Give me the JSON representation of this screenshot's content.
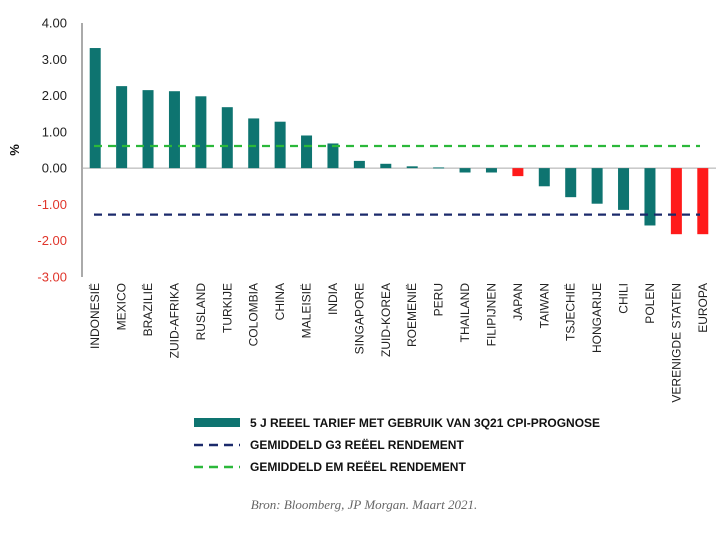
{
  "chart_data": {
    "type": "bar",
    "ylabel": "%",
    "ylim": [
      -3.0,
      4.0
    ],
    "yticks": [
      "4.00",
      "3.00",
      "2.00",
      "1.00",
      "0.00",
      "-1.00",
      "-2.00",
      "-3.00"
    ],
    "ytick_values": [
      4,
      3,
      2,
      1,
      0,
      -1,
      -2,
      -3
    ],
    "categories": [
      "INDONESIË",
      "MEXICO",
      "BRAZILIË",
      "ZUID-AFRIKA",
      "RUSLAND",
      "TURKIJE",
      "COLOMBIA",
      "CHINA",
      "MALEISIË",
      "INDIA",
      "SINGAPORE",
      "ZUID-KOREA",
      "ROEMENIË",
      "PERU",
      "THAILAND",
      "FILIPIJNEN",
      "JAPAN",
      "TAIWAN",
      "TSJECHIË",
      "HONGARIJE",
      "CHILI",
      "POLEN",
      "VERENIGDE STATEN",
      "EUROPA"
    ],
    "series": [
      {
        "name": "5 J REEEL TARIEF MET GEBRUIK VAN 3Q21 CPI-PROGNOSE",
        "values": [
          3.31,
          2.26,
          2.15,
          2.12,
          1.98,
          1.68,
          1.37,
          1.28,
          0.9,
          0.68,
          0.2,
          0.12,
          0.05,
          0.02,
          -0.12,
          -0.12,
          -0.22,
          -0.5,
          -0.8,
          -0.98,
          -1.15,
          -1.58,
          -1.82,
          -1.82
        ],
        "highlight": [
          "JAPAN",
          "VERENIGDE STATEN",
          "EUROPA"
        ]
      }
    ],
    "reference_lines": [
      {
        "name": "GEMIDDELD G3 REËEL RENDEMENT",
        "value": -1.28
      },
      {
        "name": "GEMIDDELD EM REËEL RENDEMENT",
        "value": 0.61
      }
    ],
    "legend_position": "bottom"
  },
  "colors": {
    "bar": "#0e7470",
    "highlight": "#ff1a1a",
    "g3_line": "#1b2a6b",
    "em_line": "#2bb83a",
    "negative_tick": "#e0352b",
    "positive_tick": "#222222"
  },
  "source": "Bron: Bloomberg, JP Morgan. Maart 2021."
}
